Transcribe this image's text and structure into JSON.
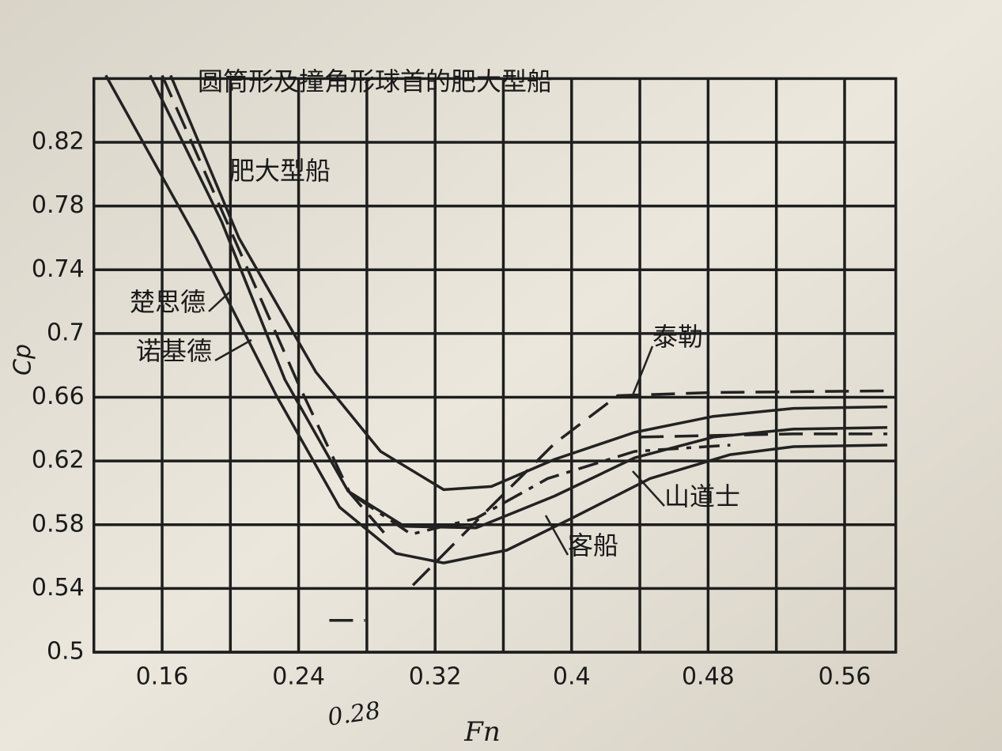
{
  "chart_data": {
    "type": "line",
    "x_label": "Fn",
    "y_label": "Cp",
    "note": "0.28",
    "xlim": [
      0.12,
      0.59
    ],
    "ylim": [
      0.5,
      0.86
    ],
    "xticks": [
      0.16,
      0.24,
      0.32,
      0.4,
      0.48,
      0.56
    ],
    "xgrid": [
      0.2,
      0.28,
      0.36,
      0.44,
      0.52
    ],
    "yticks": [
      0.5,
      0.54,
      0.58,
      0.62,
      0.66,
      0.7,
      0.74,
      0.78,
      0.82
    ],
    "grid": true,
    "series": [
      {
        "name": "圆筒形及撞角形球首的肥大型船",
        "color": "#222222",
        "style": "solid",
        "x": [
          0.165,
          0.205,
          0.25,
          0.288,
          0.325,
          0.353,
          0.39,
          0.437,
          0.483,
          0.53,
          0.585
        ],
        "values": [
          0.862,
          0.76,
          0.676,
          0.626,
          0.602,
          0.604,
          0.621,
          0.638,
          0.648,
          0.653,
          0.654
        ]
      },
      {
        "name": "肥大型船",
        "color": "#222222",
        "style": "solid",
        "x": [
          0.153,
          0.195,
          0.232,
          0.269,
          0.302,
          0.344,
          0.39,
          0.437,
          0.483,
          0.53,
          0.585
        ],
        "values": [
          0.862,
          0.77,
          0.671,
          0.601,
          0.579,
          0.578,
          0.598,
          0.622,
          0.635,
          0.64,
          0.641
        ]
      },
      {
        "name": "楚思德",
        "color": "#222222",
        "style": "solid",
        "x": [
          0.127,
          0.18,
          0.227,
          0.264,
          0.297,
          0.325,
          0.362,
          0.4,
          0.446,
          0.493,
          0.53,
          0.585
        ],
        "values": [
          0.862,
          0.76,
          0.661,
          0.591,
          0.562,
          0.556,
          0.564,
          0.584,
          0.609,
          0.624,
          0.629,
          0.63
        ]
      },
      {
        "name": "诺基德",
        "color": "#222222",
        "style": "dashed",
        "x": [
          0.16,
          0.2,
          0.24,
          0.27,
          0.29
        ],
        "values": [
          0.862,
          0.765,
          0.668,
          0.6,
          0.575
        ]
      },
      {
        "name": "泰勒",
        "color": "#222222",
        "style": "dashed",
        "x": [
          0.258,
          0.279,
          0.29,
          0.307,
          0.344,
          0.39,
          0.427,
          0.483,
          0.585
        ],
        "values": [
          0.52,
          0.52,
          null,
          0.542,
          0.582,
          0.631,
          0.661,
          0.663,
          0.664
        ]
      },
      {
        "name": "山道士",
        "color": "#222222",
        "style": "dashdot",
        "x": [
          0.274,
          0.306,
          0.344,
          0.386,
          0.437,
          0.493
        ],
        "values": [
          0.597,
          0.574,
          0.584,
          0.609,
          0.626,
          0.63
        ]
      },
      {
        "name": "客船",
        "color": "#222222",
        "style": "dashed",
        "x": [
          0.44,
          0.483,
          0.53,
          0.585
        ],
        "values": [
          0.635,
          0.636,
          0.637,
          0.637
        ]
      }
    ]
  }
}
